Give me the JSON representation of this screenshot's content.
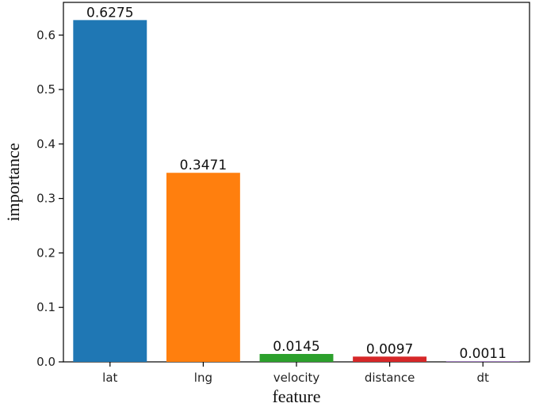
{
  "chart_data": {
    "type": "bar",
    "title": "",
    "xlabel": "feature",
    "ylabel": "importance",
    "categories": [
      "lat",
      "lng",
      "velocity",
      "distance",
      "dt"
    ],
    "values": [
      0.6275,
      0.3471,
      0.0145,
      0.0097,
      0.0011
    ],
    "data_labels": [
      "0.6275",
      "0.3471",
      "0.0145",
      "0.0097",
      "0.0011"
    ],
    "colors": [
      "#1f77b4",
      "#ff7f0e",
      "#2ca02c",
      "#d62728",
      "#9467bd"
    ],
    "ylim": [
      0,
      0.66
    ],
    "yticks": [
      0.0,
      0.1,
      0.2,
      0.3,
      0.4,
      0.5,
      0.6
    ],
    "ytick_labels": [
      "0.0",
      "0.1",
      "0.2",
      "0.3",
      "0.4",
      "0.5",
      "0.6"
    ],
    "grid": false,
    "legend": "none"
  }
}
